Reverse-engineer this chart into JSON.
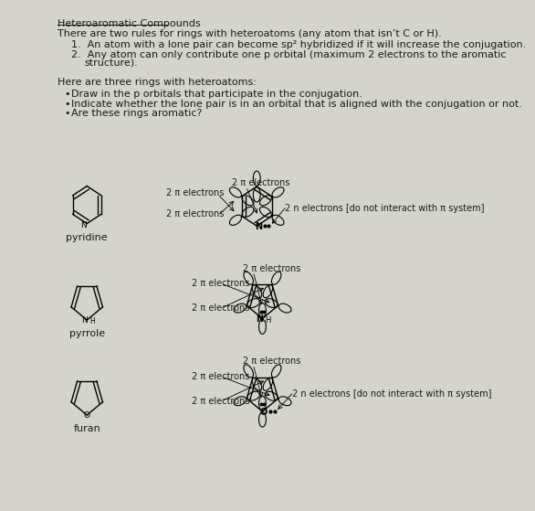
{
  "bg_color": "#d4d4cc",
  "text_color": "#1a1a1a",
  "title": "Heteroaromatic Compounds",
  "line1": "There are two rules for rings with heteroatoms (any atom that isn’t C or H).",
  "rule1": "An atom with a lone pair can become sp² hybridized if it will increase the conjugation.",
  "rule2": "Any atom can only contribute one p orbital (maximum 2 electrons to the aromatic",
  "rule2b": "structure).",
  "section_header": "Here are three rings with heteroatoms:",
  "bullet1": "Draw in the p orbitals that participate in the conjugation.",
  "bullet2": "Indicate whether the lone pair is in an orbital that is aligned with the conjugation or not.",
  "bullet3": "Are these rings aromatic?",
  "pyridine_label": "pyridine",
  "pyrrole_label": "pyrrole",
  "furan_label": "furan",
  "two_pi": "2 π electrons",
  "two_n": "2 n electrons [do not interact with π system]"
}
